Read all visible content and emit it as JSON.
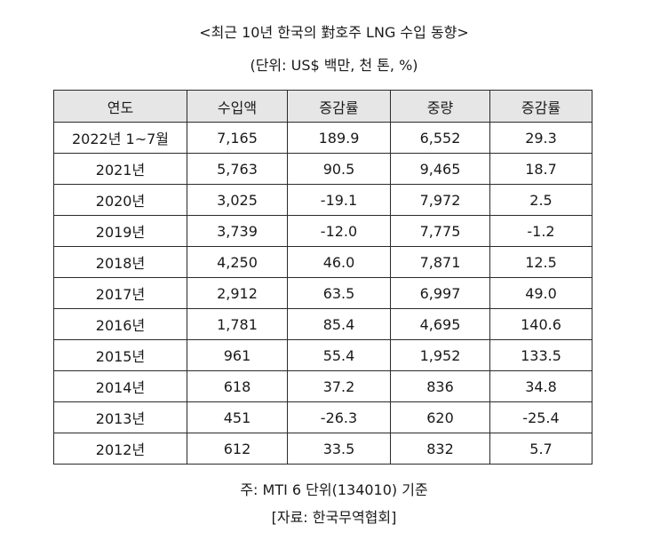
{
  "title": "<최근 10년 한국의 對호주 LNG 수입 동향>",
  "unit_note": "(단위: US$ 백만, 천 톤, %)",
  "table": {
    "headers": [
      "연도",
      "수입액",
      "증감률",
      "중량",
      "증감률"
    ],
    "rows": [
      [
        "2022년 1~7월",
        "7,165",
        "189.9",
        "6,552",
        "29.3"
      ],
      [
        "2021년",
        "5,763",
        "90.5",
        "9,465",
        "18.7"
      ],
      [
        "2020년",
        "3,025",
        "-19.1",
        "7,972",
        "2.5"
      ],
      [
        "2019년",
        "3,739",
        "-12.0",
        "7,775",
        "-1.2"
      ],
      [
        "2018년",
        "4,250",
        "46.0",
        "7,871",
        "12.5"
      ],
      [
        "2017년",
        "2,912",
        "63.5",
        "6,997",
        "49.0"
      ],
      [
        "2016년",
        "1,781",
        "85.4",
        "4,695",
        "140.6"
      ],
      [
        "2015년",
        "961",
        "55.4",
        "1,952",
        "133.5"
      ],
      [
        "2014년",
        "618",
        "37.2",
        "836",
        "34.8"
      ],
      [
        "2013년",
        "451",
        "-26.3",
        "620",
        "-25.4"
      ],
      [
        "2012년",
        "612",
        "33.5",
        "832",
        "5.7"
      ]
    ]
  },
  "footnote": "주: MTI 6 단위(134010) 기준",
  "source": "[자료: 한국무역협회]",
  "colors": {
    "header_bg": "#e6e6e6",
    "border": "#2a2a2a",
    "text": "#1a1a1a"
  }
}
